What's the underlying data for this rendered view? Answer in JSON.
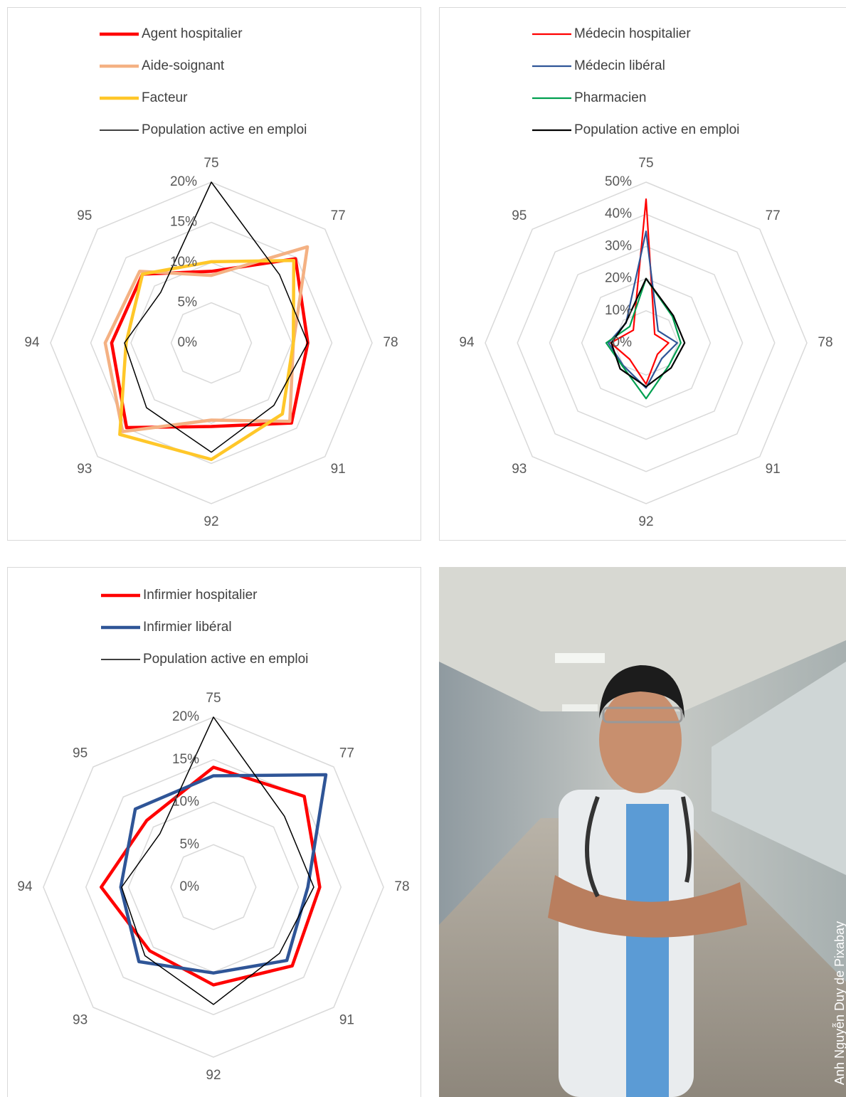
{
  "chart_data": [
    {
      "type": "radar",
      "categories": [
        "75",
        "77",
        "78",
        "91",
        "92",
        "93",
        "94",
        "95"
      ],
      "rlim": [
        0,
        20
      ],
      "rticks": [
        {
          "value": 0,
          "label": "0%"
        },
        {
          "value": 5,
          "label": "5%"
        },
        {
          "value": 10,
          "label": "10%"
        },
        {
          "value": 15,
          "label": "15%"
        },
        {
          "value": 20,
          "label": "20%"
        }
      ],
      "grid": true,
      "series": [
        {
          "name": "Agent hospitalier",
          "color": "#ff0000",
          "width": 4.5,
          "values": [
            8.9,
            14.8,
            12,
            14.1,
            10.4,
            14.9,
            12.4,
            12.1
          ]
        },
        {
          "name": "Aide-soignant",
          "color": "#f4b183",
          "width": 4.5,
          "values": [
            8.4,
            16.9,
            10.2,
            13.8,
            9.6,
            15.6,
            13.2,
            12.6
          ]
        },
        {
          "name": "Facteur",
          "color": "#ffc729",
          "width": 4.5,
          "values": [
            10.1,
            14.5,
            10.2,
            12.5,
            14.5,
            16.1,
            10.6,
            12.1
          ]
        },
        {
          "name": "Population active en emploi",
          "color": "#000000",
          "width": 1.5,
          "values": [
            20,
            12,
            12,
            11,
            13.6,
            11.4,
            10.8,
            8.9
          ]
        }
      ]
    },
    {
      "type": "radar",
      "categories": [
        "75",
        "77",
        "78",
        "91",
        "92",
        "93",
        "94",
        "95"
      ],
      "rlim": [
        0,
        50
      ],
      "rticks": [
        {
          "value": 0,
          "label": "0%"
        },
        {
          "value": 10,
          "label": "10%"
        },
        {
          "value": 20,
          "label": "20%"
        },
        {
          "value": 30,
          "label": "30%"
        },
        {
          "value": 40,
          "label": "40%"
        },
        {
          "value": 50,
          "label": "50%"
        }
      ],
      "grid": true,
      "series": [
        {
          "name": "Médecin hospitalier",
          "color": "#ff0000",
          "width": 2.2,
          "values": [
            44.7,
            3.8,
            7,
            5,
            12.8,
            7.2,
            11,
            5.6
          ]
        },
        {
          "name": "Médecin libéral",
          "color": "#2f5597",
          "width": 2.2,
          "values": [
            34.7,
            5.3,
            9.7,
            6.9,
            14,
            10,
            11.7,
            8.8
          ]
        },
        {
          "name": "Pharmacien",
          "color": "#00a050",
          "width": 2.2,
          "values": [
            20,
            11.6,
            10.8,
            10,
            17.3,
            10.3,
            12.4,
            7.2
          ]
        },
        {
          "name": "Population active en emploi",
          "color": "#000000",
          "width": 2.2,
          "values": [
            20,
            12,
            12,
            11,
            13.6,
            11.4,
            10.8,
            8.9
          ]
        }
      ]
    },
    {
      "type": "radar",
      "categories": [
        "75",
        "77",
        "78",
        "91",
        "92",
        "93",
        "94",
        "95"
      ],
      "rlim": [
        0,
        20
      ],
      "rticks": [
        {
          "value": 0,
          "label": "0%"
        },
        {
          "value": 5,
          "label": "5%"
        },
        {
          "value": 10,
          "label": "10%"
        },
        {
          "value": 15,
          "label": "15%"
        },
        {
          "value": 20,
          "label": "20%"
        }
      ],
      "grid": true,
      "series": [
        {
          "name": "Infirmier hospitalier",
          "color": "#ff0000",
          "width": 4.5,
          "values": [
            14.1,
            15.1,
            12.5,
            13.1,
            11.5,
            10.6,
            13.2,
            11.1
          ]
        },
        {
          "name": "Infirmier libéral",
          "color": "#2f5597",
          "width": 4.5,
          "values": [
            13.1,
            18.7,
            11.1,
            12.2,
            10.1,
            12.4,
            10.9,
            13
          ]
        },
        {
          "name": "Population active en emploi",
          "color": "#000000",
          "width": 1.5,
          "values": [
            20,
            11.8,
            11.8,
            11,
            13.8,
            11.4,
            10.8,
            8.9
          ]
        }
      ]
    }
  ],
  "photo": {
    "credit": "Anh Nguyễn Duy de Pixabay"
  }
}
